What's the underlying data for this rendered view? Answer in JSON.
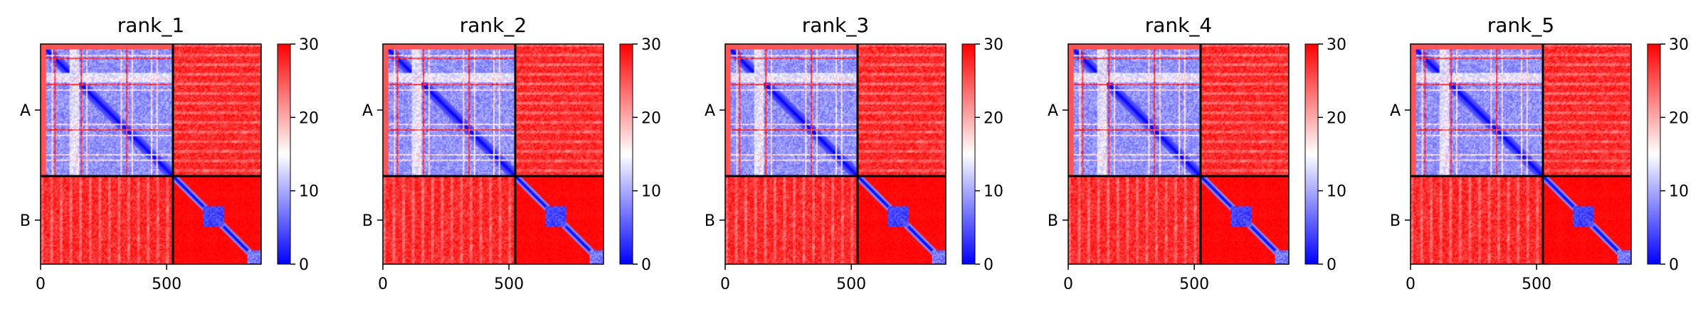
{
  "chart_data": [
    {
      "type": "heatmap",
      "title": "rank_1",
      "y_tick_labels": [
        "A",
        "B"
      ],
      "x_ticks": [
        0,
        500
      ],
      "x_range": [
        0,
        875
      ],
      "chain_boundary": 525,
      "colorbar": {
        "min": 0,
        "max": 30,
        "ticks": [
          0,
          10,
          20,
          30
        ],
        "colors": [
          "#0000ff",
          "#ffffff",
          "#ff0000"
        ]
      }
    },
    {
      "type": "heatmap",
      "title": "rank_2",
      "y_tick_labels": [
        "A",
        "B"
      ],
      "x_ticks": [
        0,
        500
      ],
      "x_range": [
        0,
        875
      ],
      "chain_boundary": 525,
      "colorbar": {
        "min": 0,
        "max": 30,
        "ticks": [
          0,
          10,
          20,
          30
        ],
        "colors": [
          "#0000ff",
          "#ffffff",
          "#ff0000"
        ]
      }
    },
    {
      "type": "heatmap",
      "title": "rank_3",
      "y_tick_labels": [
        "A",
        "B"
      ],
      "x_ticks": [
        0,
        500
      ],
      "x_range": [
        0,
        875
      ],
      "chain_boundary": 525,
      "colorbar": {
        "min": 0,
        "max": 30,
        "ticks": [
          0,
          10,
          20,
          30
        ],
        "colors": [
          "#0000ff",
          "#ffffff",
          "#ff0000"
        ]
      }
    },
    {
      "type": "heatmap",
      "title": "rank_4",
      "y_tick_labels": [
        "A",
        "B"
      ],
      "x_ticks": [
        0,
        500
      ],
      "x_range": [
        0,
        875
      ],
      "chain_boundary": 525,
      "colorbar": {
        "min": 0,
        "max": 30,
        "ticks": [
          0,
          10,
          20,
          30
        ],
        "colors": [
          "#0000ff",
          "#ffffff",
          "#ff0000"
        ]
      }
    },
    {
      "type": "heatmap",
      "title": "rank_5",
      "y_tick_labels": [
        "A",
        "B"
      ],
      "x_ticks": [
        0,
        500
      ],
      "x_range": [
        0,
        875
      ],
      "chain_boundary": 525,
      "colorbar": {
        "min": 0,
        "max": 30,
        "ticks": [
          0,
          10,
          20,
          30
        ],
        "colors": [
          "#0000ff",
          "#ffffff",
          "#ff0000"
        ]
      }
    }
  ]
}
